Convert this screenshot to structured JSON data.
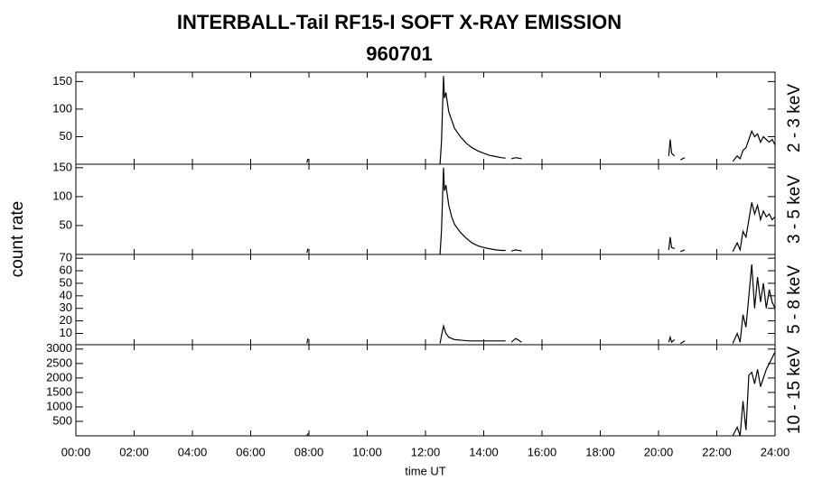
{
  "title": "INTERBALL-Tail RF15-I SOFT X-RAY EMISSION",
  "subtitle": "960701",
  "ylabel": "count rate",
  "xlabel": "time UT",
  "xlim": [
    0,
    24
  ],
  "xticks": [
    {
      "value": 0,
      "label": "00:00"
    },
    {
      "value": 2,
      "label": "02:00"
    },
    {
      "value": 4,
      "label": "04:00"
    },
    {
      "value": 6,
      "label": "06:00"
    },
    {
      "value": 8,
      "label": "08:00"
    },
    {
      "value": 10,
      "label": "10:00"
    },
    {
      "value": 12,
      "label": "12:00"
    },
    {
      "value": 14,
      "label": "14:00"
    },
    {
      "value": 16,
      "label": "16:00"
    },
    {
      "value": 18,
      "label": "18:00"
    },
    {
      "value": 20,
      "label": "20:00"
    },
    {
      "value": 22,
      "label": "22:00"
    },
    {
      "value": 24,
      "label": "24:00"
    }
  ],
  "chart_data": [
    {
      "type": "line",
      "label": "2 - 3 keV",
      "color": "#000000",
      "ylim": [
        0,
        167
      ],
      "yticks": [
        50,
        100,
        150
      ],
      "x": [
        7.93,
        7.97,
        10,
        12.5,
        12.55,
        12.62,
        12.65,
        12.7,
        12.8,
        12.9,
        13.0,
        13.2,
        13.4,
        13.6,
        13.8,
        14.0,
        14.2,
        14.4,
        14.6,
        14.75,
        14.85,
        14.95,
        15.1,
        15.3,
        18,
        20.35,
        20.4,
        20.45,
        20.55,
        20.65,
        20.75,
        20.9,
        22,
        22.55,
        22.7,
        22.8,
        22.9,
        23.0,
        23.1,
        23.2,
        23.3,
        23.4,
        23.5,
        23.6,
        23.7,
        23.8,
        23.9,
        24
      ],
      "values": [
        3,
        10,
        null,
        0,
        40,
        160,
        120,
        130,
        95,
        80,
        65,
        50,
        38,
        30,
        24,
        20,
        16,
        14,
        12,
        11,
        null,
        10,
        12,
        10,
        null,
        15,
        45,
        20,
        15,
        null,
        8,
        12,
        null,
        5,
        15,
        10,
        25,
        30,
        45,
        60,
        50,
        55,
        40,
        50,
        45,
        40,
        45,
        35
      ]
    },
    {
      "type": "line",
      "label": "3 - 5 keV",
      "color": "#000000",
      "ylim": [
        0,
        156
      ],
      "yticks": [
        50,
        100,
        150
      ],
      "x": [
        7.93,
        7.97,
        10,
        12.5,
        12.55,
        12.62,
        12.65,
        12.7,
        12.8,
        12.9,
        13.0,
        13.2,
        13.4,
        13.6,
        13.8,
        14.0,
        14.2,
        14.4,
        14.6,
        14.75,
        14.85,
        14.95,
        15.1,
        15.3,
        18,
        20.35,
        20.4,
        20.45,
        20.55,
        20.65,
        20.75,
        20.9,
        22,
        22.55,
        22.7,
        22.8,
        22.9,
        23.0,
        23.1,
        23.2,
        23.3,
        23.4,
        23.5,
        23.6,
        23.7,
        23.8,
        23.9,
        24
      ],
      "values": [
        3,
        10,
        null,
        0,
        40,
        150,
        110,
        120,
        85,
        65,
        52,
        38,
        28,
        20,
        15,
        12,
        10,
        8,
        7,
        7,
        null,
        6,
        8,
        6,
        null,
        8,
        30,
        12,
        10,
        null,
        5,
        8,
        null,
        5,
        20,
        8,
        40,
        30,
        60,
        90,
        70,
        85,
        60,
        75,
        65,
        70,
        60,
        65
      ]
    },
    {
      "type": "line",
      "label": "5 - 8 keV",
      "color": "#000000",
      "ylim": [
        1,
        73
      ],
      "yticks": [
        10,
        20,
        30,
        40,
        50,
        60,
        70
      ],
      "x": [
        7.93,
        7.97,
        10,
        12.5,
        12.55,
        12.62,
        12.7,
        12.8,
        13.0,
        13.5,
        14.0,
        14.5,
        14.75,
        14.85,
        14.95,
        15.1,
        15.3,
        18,
        20.35,
        20.4,
        20.45,
        20.55,
        20.65,
        20.75,
        20.9,
        22,
        22.55,
        22.7,
        22.8,
        22.9,
        23.0,
        23.1,
        23.2,
        23.3,
        23.4,
        23.5,
        23.6,
        23.7,
        23.8,
        23.9,
        24
      ],
      "values": [
        2,
        6,
        null,
        2,
        8,
        16,
        10,
        7,
        5,
        4,
        4,
        4,
        4,
        null,
        3,
        6,
        3,
        null,
        3,
        7,
        3,
        5,
        null,
        2,
        4,
        null,
        2,
        10,
        3,
        25,
        15,
        40,
        65,
        30,
        55,
        35,
        50,
        30,
        45,
        35,
        30
      ]
    },
    {
      "type": "line",
      "label": "10 - 15 keV",
      "color": "#000000",
      "ylim": [
        0,
        3150
      ],
      "yticks": [
        500,
        1000,
        1500,
        2000,
        2500,
        3000
      ],
      "x": [
        7.93,
        7.97,
        15,
        22.55,
        22.7,
        22.8,
        22.9,
        23.0,
        23.1,
        23.2,
        23.3,
        23.4,
        23.5,
        23.6,
        23.7,
        23.8,
        23.9,
        24
      ],
      "values": [
        0,
        80,
        null,
        0,
        300,
        0,
        1200,
        200,
        2100,
        2200,
        1800,
        2300,
        1700,
        2000,
        2300,
        2500,
        2700,
        2900
      ]
    }
  ]
}
